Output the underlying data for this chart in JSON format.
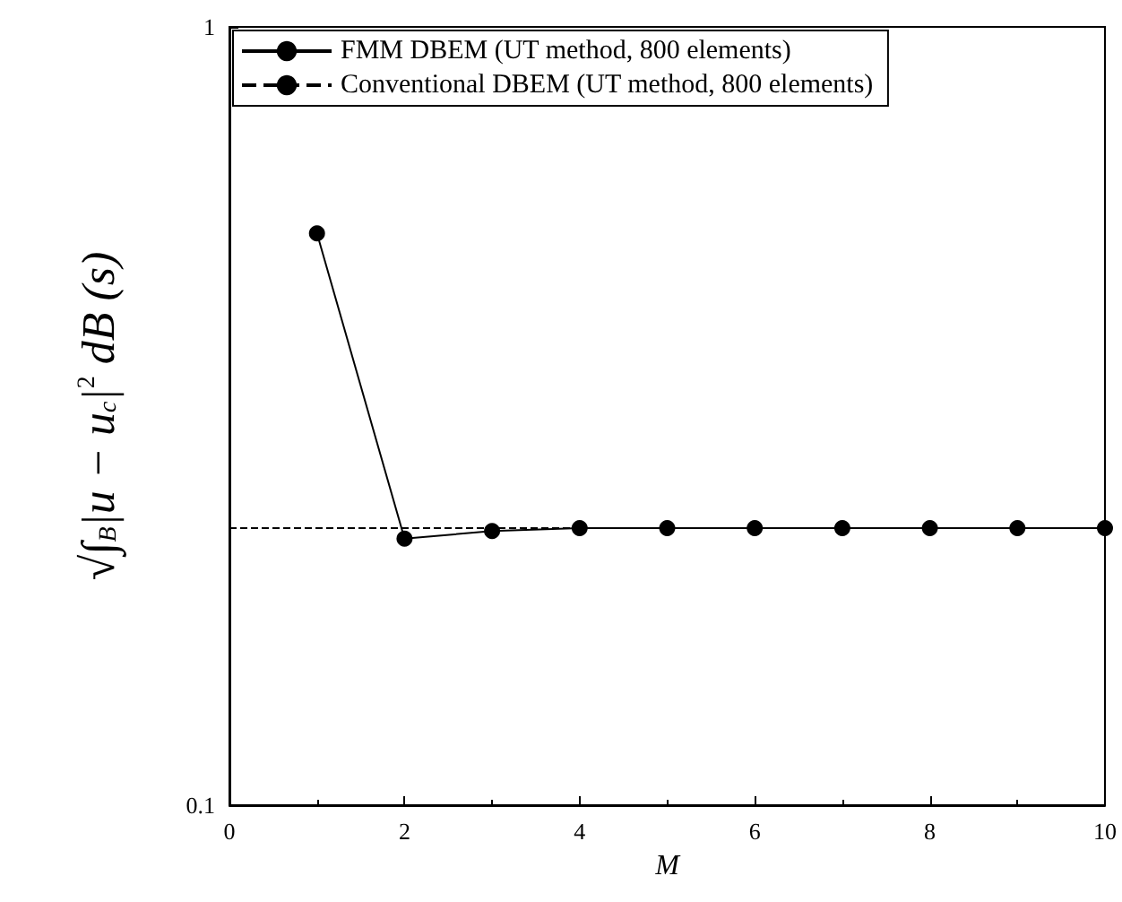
{
  "chart_data": {
    "type": "line",
    "xlabel": "M",
    "ylabel": "√∫$_{B}$|u − u$_{c}$|$^{2}$ dB (s)",
    "log": "y",
    "series": [
      {
        "name": "FMM DBEM (UT method, 800 elements)",
        "color": "#000000",
        "x": [
          1,
          2,
          3,
          4,
          5,
          6,
          7,
          8,
          9,
          10
        ],
        "values": [
          0.543,
          0.22,
          0.225,
          0.227,
          0.227,
          0.227,
          0.227,
          0.227,
          0.227,
          0.227
        ],
        "marker": "circle",
        "line_style": "solid"
      },
      {
        "name": "Conventional DBEM (UT method, 800 elements)",
        "color": "#000000",
        "x": [
          0,
          10
        ],
        "values": [
          0.227,
          0.227
        ],
        "marker": "none",
        "line_style": "dashed"
      }
    ],
    "xlim": [
      0,
      10
    ],
    "xticks": [
      0,
      2,
      4,
      6,
      8,
      10
    ],
    "ylim": [
      0.1,
      1
    ],
    "yticks": [
      0.1,
      1
    ],
    "grid": false,
    "legend": "top left"
  }
}
